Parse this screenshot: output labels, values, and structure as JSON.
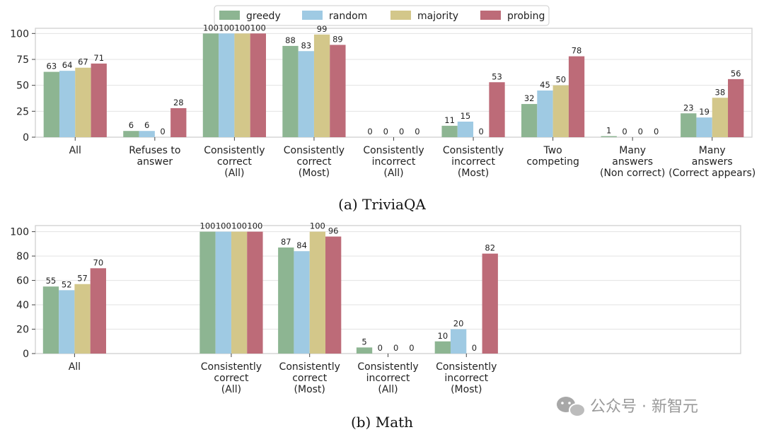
{
  "legend": [
    {
      "name": "greedy",
      "color": "#8db592"
    },
    {
      "name": "random",
      "color": "#9fcae3"
    },
    {
      "name": "majority",
      "color": "#d3c78a"
    },
    {
      "name": "probing",
      "color": "#bd6b78"
    }
  ],
  "watermark": "公众号 · 新智元",
  "chart_data": [
    {
      "type": "bar",
      "caption": "(a) TriviaQA",
      "ylim": [
        0,
        105
      ],
      "yticks": [
        0,
        25,
        50,
        75,
        100
      ],
      "grid": true,
      "legend_position": "top-center",
      "categories": [
        [
          "All"
        ],
        [
          "Refuses to",
          "answer"
        ],
        [
          "Consistently",
          "correct",
          "(All)"
        ],
        [
          "Consistently",
          "correct",
          "(Most)"
        ],
        [
          "Consistently",
          "incorrect",
          "(All)"
        ],
        [
          "Consistently",
          "incorrect",
          "(Most)"
        ],
        [
          "Two",
          "competing"
        ],
        [
          "Many",
          "answers",
          "(Non correct)"
        ],
        [
          "Many",
          "answers",
          "(Correct appears)"
        ]
      ],
      "series": [
        {
          "name": "greedy",
          "values": [
            63,
            6,
            100,
            88,
            0,
            11,
            32,
            1,
            23
          ]
        },
        {
          "name": "random",
          "values": [
            64,
            6,
            100,
            83,
            0,
            15,
            45,
            0,
            19
          ]
        },
        {
          "name": "majority",
          "values": [
            67,
            0,
            100,
            99,
            0,
            0,
            50,
            0,
            38
          ]
        },
        {
          "name": "probing",
          "values": [
            71,
            28,
            100,
            89,
            0,
            53,
            78,
            0,
            56
          ]
        }
      ]
    },
    {
      "type": "bar",
      "caption": "(b) Math",
      "ylim": [
        0,
        105
      ],
      "yticks": [
        0,
        20,
        40,
        60,
        80,
        100
      ],
      "grid": true,
      "categories": [
        [
          "All"
        ],
        [],
        [
          "Consistently",
          "correct",
          "(All)"
        ],
        [
          "Consistently",
          "correct",
          "(Most)"
        ],
        [
          "Consistently",
          "incorrect",
          "(All)"
        ],
        [
          "Consistently",
          "incorrect",
          "(Most)"
        ],
        [],
        [],
        []
      ],
      "series": [
        {
          "name": "greedy",
          "values": [
            55,
            null,
            100,
            87,
            5,
            10,
            null,
            null,
            null
          ]
        },
        {
          "name": "random",
          "values": [
            52,
            null,
            100,
            84,
            0,
            20,
            null,
            null,
            null
          ]
        },
        {
          "name": "majority",
          "values": [
            57,
            null,
            100,
            100,
            0,
            0,
            null,
            null,
            null
          ]
        },
        {
          "name": "probing",
          "values": [
            70,
            null,
            100,
            96,
            0,
            82,
            null,
            null,
            null
          ]
        }
      ]
    }
  ]
}
